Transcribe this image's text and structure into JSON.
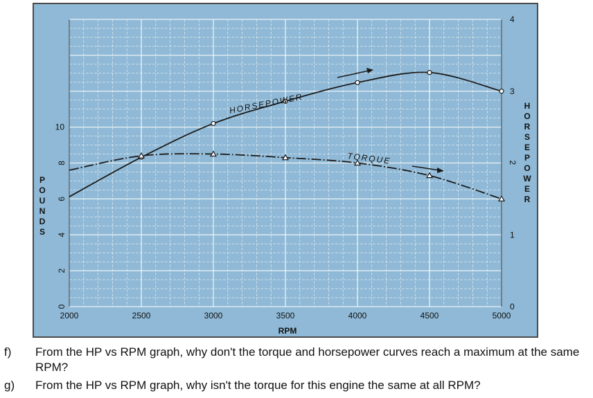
{
  "chart_data": {
    "type": "line",
    "xlabel": "RPM",
    "ylabel_left": "POUNDS",
    "ylabel_right": "HORSEPOWER",
    "x_ticks": [
      "2000",
      "2500",
      "3000",
      "3500",
      "4000",
      "4500",
      "5000"
    ],
    "left_ticks": [
      "0",
      "2",
      "4",
      "6",
      "8",
      "10"
    ],
    "right_ticks": [
      "0",
      "1",
      "2",
      "3",
      "4"
    ],
    "xlim": [
      2000,
      5000
    ],
    "ylim_left": [
      0,
      16
    ],
    "ylim_right": [
      0,
      4
    ],
    "series": [
      {
        "name": "HORSEPOWER",
        "axis": "right",
        "x": [
          2000,
          2500,
          3000,
          3500,
          4000,
          4500,
          5000
        ],
        "y": [
          1.53,
          2.08,
          2.55,
          2.86,
          3.12,
          3.26,
          3.0
        ]
      },
      {
        "name": "TORQUE",
        "axis": "left",
        "x": [
          2000,
          2500,
          3000,
          3500,
          4000,
          4500,
          5000
        ],
        "y": [
          7.6,
          8.4,
          8.5,
          8.3,
          8.0,
          7.3,
          6.0
        ]
      }
    ]
  },
  "questions": [
    {
      "num": "f)",
      "text": "From the HP vs RPM graph, why don't the torque and horsepower curves reach a maximum at the same RPM?"
    },
    {
      "num": "g)",
      "text": "From the HP vs RPM graph, why isn't the torque for this engine the same at all RPM?"
    }
  ]
}
